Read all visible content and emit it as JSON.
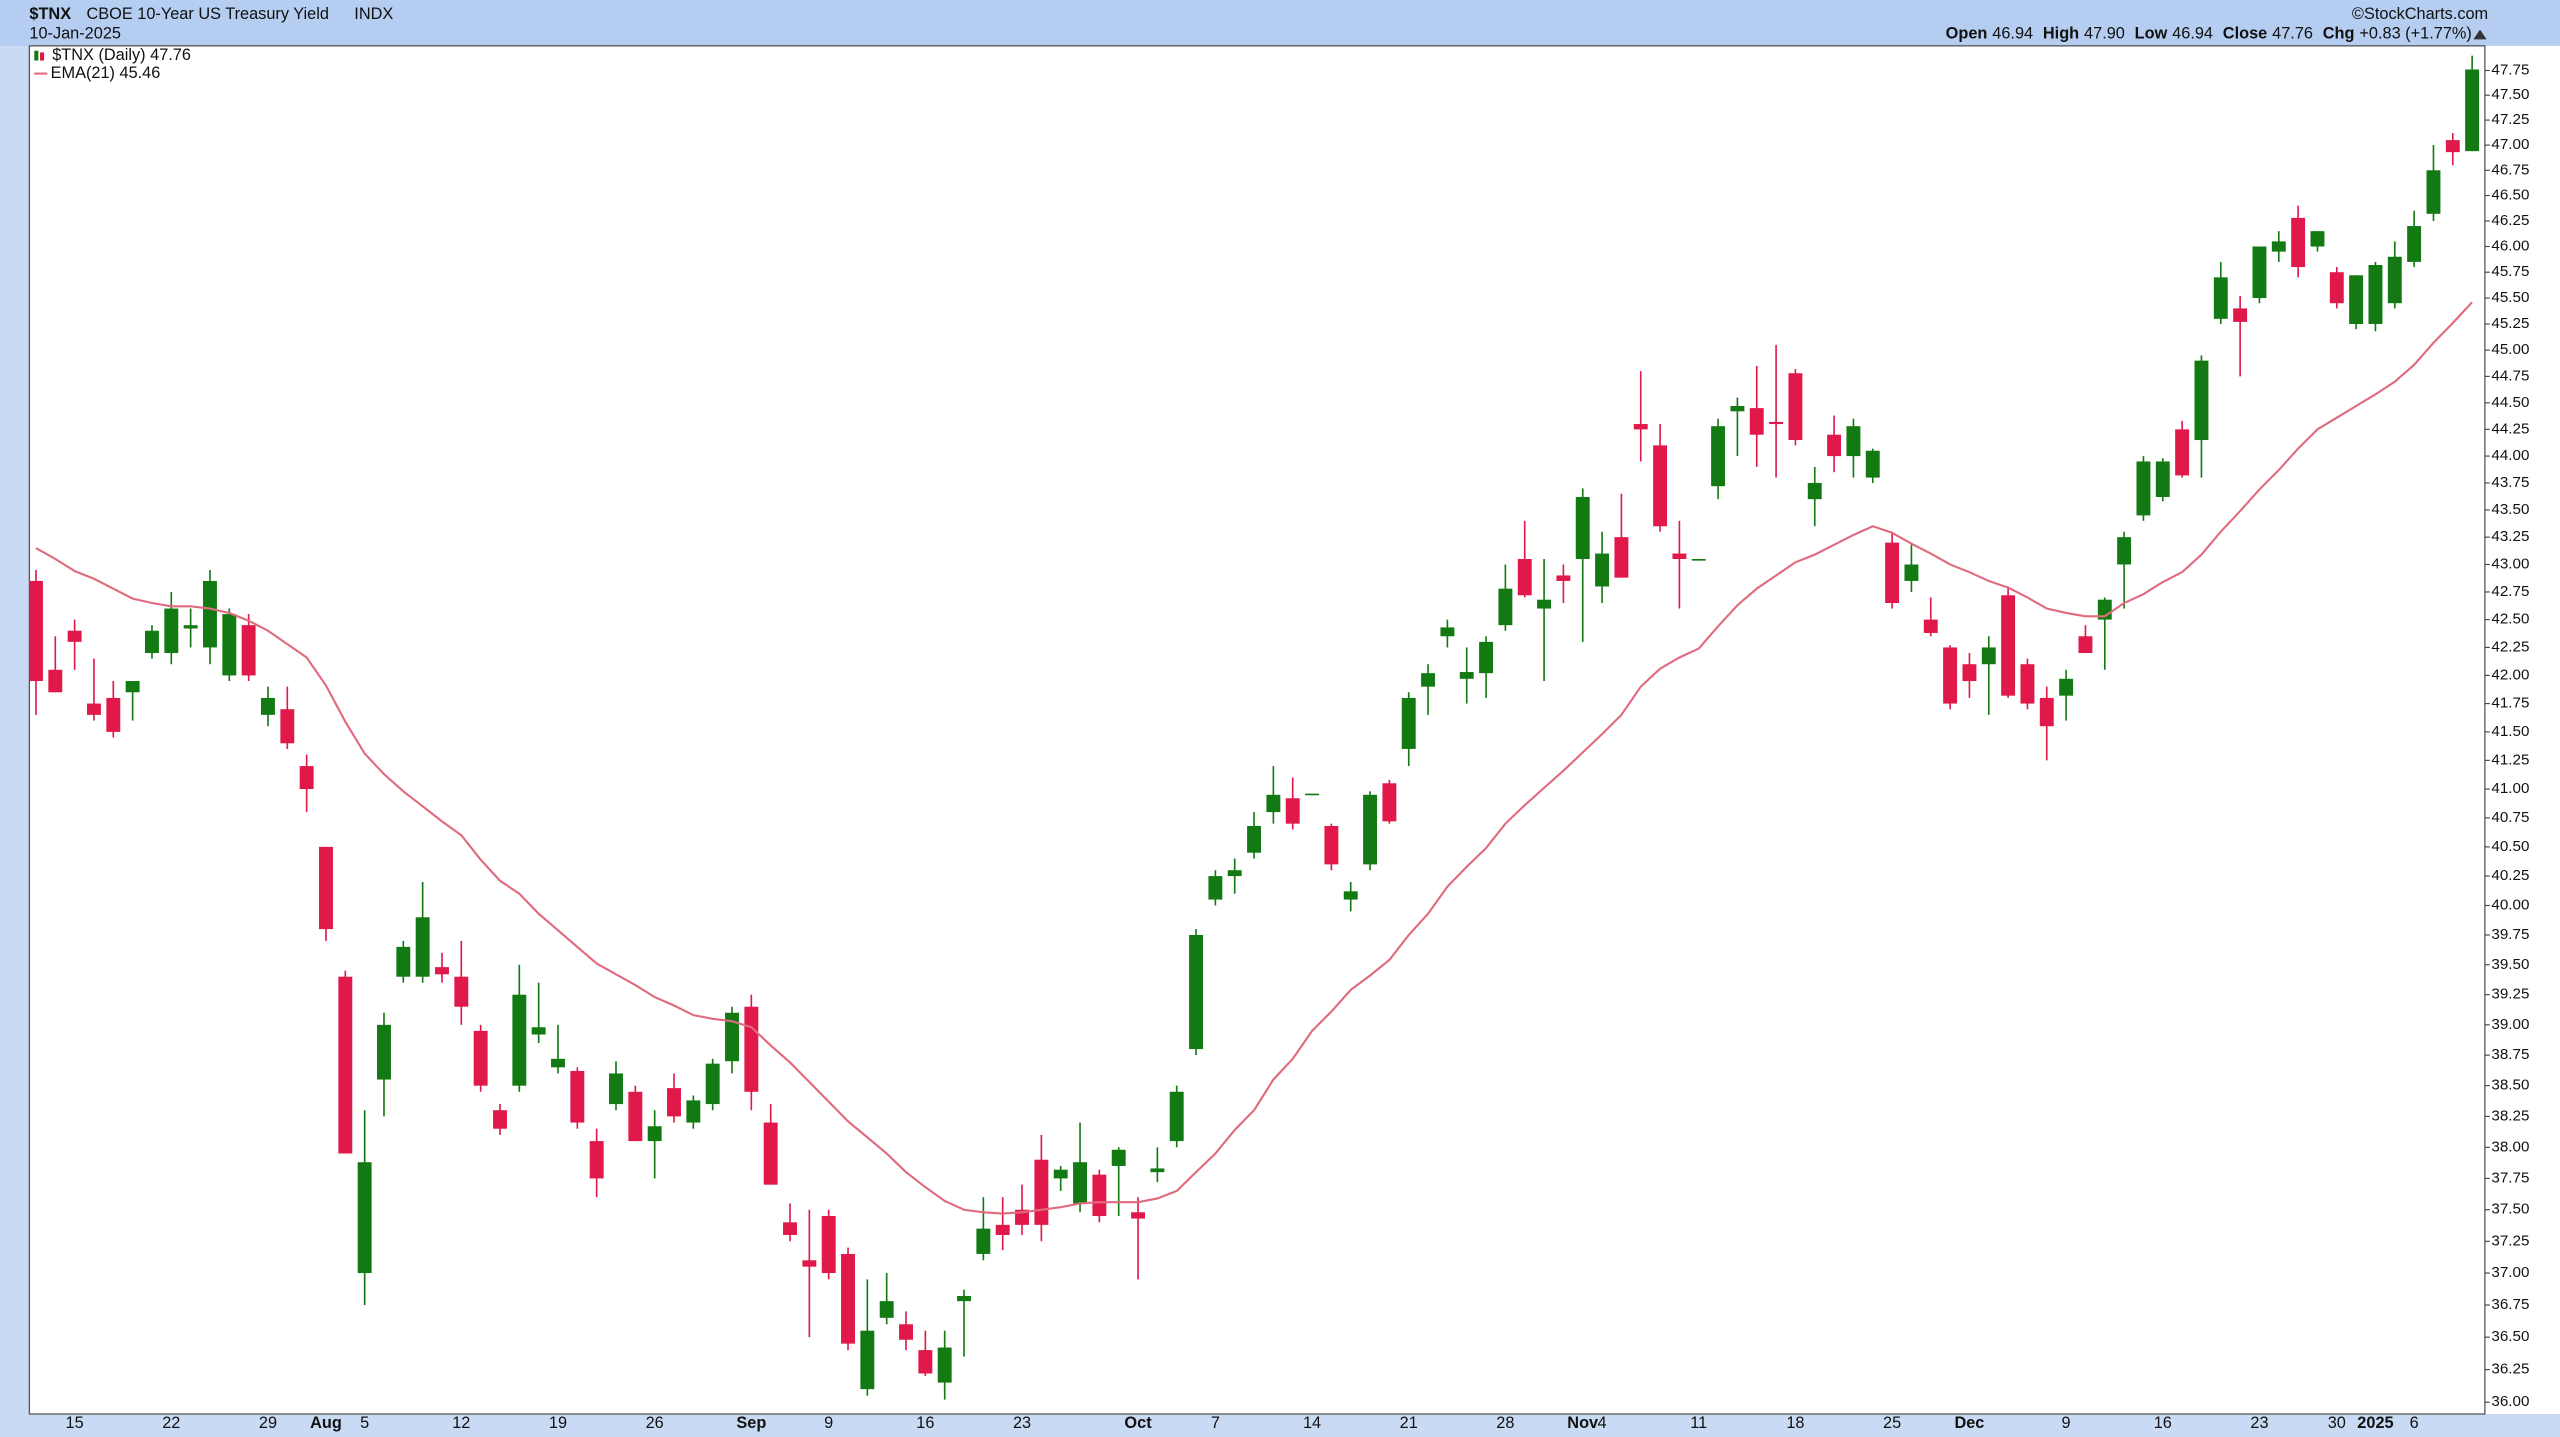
{
  "header": {
    "symbol": "$TNX",
    "description": "CBOE 10-Year US Treasury Yield",
    "exchange": "INDX",
    "date": "10-Jan-2025",
    "watermark": "©StockCharts.com",
    "stats": [
      {
        "label": "Open",
        "value": "46.94"
      },
      {
        "label": "High",
        "value": "47.90"
      },
      {
        "label": "Low",
        "value": "46.94"
      },
      {
        "label": "Close",
        "value": "47.76"
      },
      {
        "label": "Chg",
        "value": "+0.83 (+1.77%)"
      }
    ]
  },
  "chart_data": {
    "type": "candlestick",
    "log": true,
    "ylim": [
      35.91,
      48.0
    ],
    "yticks": [
      {
        "value": 36,
        "label": "36.00"
      },
      36.25,
      {
        "value": 36.5,
        "label": "36.50"
      },
      36.75,
      {
        "value": 37,
        "label": "37.00"
      },
      37.25,
      {
        "value": 37.5,
        "label": "37.50"
      },
      37.75,
      {
        "value": 38,
        "label": "38.00"
      },
      38.25,
      {
        "value": 38.5,
        "label": "38.50"
      },
      38.75,
      {
        "value": 39,
        "label": "39.00"
      },
      39.25,
      {
        "value": 39.5,
        "label": "39.50"
      },
      39.75,
      {
        "value": 40,
        "label": "40.00"
      },
      40.25,
      {
        "value": 40.5,
        "label": "40.50"
      },
      40.75,
      {
        "value": 41,
        "label": "41.00"
      },
      41.25,
      {
        "value": 41.5,
        "label": "41.50"
      },
      41.75,
      {
        "value": 42,
        "label": "42.00"
      },
      42.25,
      {
        "value": 42.5,
        "label": "42.50"
      },
      42.75,
      {
        "value": 43,
        "label": "43.00"
      },
      43.25,
      {
        "value": 43.5,
        "label": "43.50"
      },
      43.75,
      {
        "value": 44,
        "label": "44.00"
      },
      44.25,
      {
        "value": 44.5,
        "label": "44.50"
      },
      44.75,
      {
        "value": 45,
        "label": "45.00"
      },
      45.25,
      {
        "value": 45.5,
        "label": "45.50"
      },
      45.75,
      {
        "value": 46,
        "label": "46.00"
      },
      46.25,
      {
        "value": 46.5,
        "label": "46.50"
      },
      46.75,
      {
        "value": 47,
        "label": "47.00"
      },
      47.25,
      {
        "value": 47.5,
        "label": "47.50"
      },
      47.75
    ],
    "categories": [
      null,
      null,
      "15",
      null,
      null,
      null,
      null,
      "22",
      null,
      null,
      null,
      null,
      "29",
      null,
      null,
      "Aug",
      null,
      "5",
      null,
      null,
      null,
      null,
      "12",
      null,
      null,
      null,
      null,
      "19",
      null,
      null,
      null,
      null,
      "26",
      null,
      null,
      null,
      null,
      "Sep",
      null,
      null,
      null,
      "9",
      null,
      null,
      null,
      null,
      "16",
      null,
      null,
      null,
      null,
      "23",
      null,
      null,
      null,
      null,
      null,
      "Oct",
      null,
      null,
      null,
      "7",
      null,
      null,
      null,
      null,
      "14",
      null,
      null,
      null,
      null,
      "21",
      null,
      null,
      null,
      null,
      "28",
      null,
      null,
      null,
      "Nov",
      "4",
      null,
      null,
      null,
      null,
      "11",
      null,
      null,
      null,
      null,
      "18",
      null,
      null,
      null,
      null,
      "25",
      null,
      null,
      null,
      "Dec",
      null,
      null,
      null,
      null,
      "9",
      null,
      null,
      null,
      null,
      "16",
      null,
      null,
      null,
      null,
      "23",
      null,
      null,
      null,
      "30",
      null,
      "2025",
      null,
      "6",
      null,
      null,
      null
    ],
    "series": [
      {
        "name": "$TNX (Daily) 47.76",
        "type": "candlestick",
        "up_color": "#137a13",
        "down_color": "#e0194a",
        "open": [
          42.85,
          42.05,
          42.4,
          41.75,
          41.8,
          41.85,
          42.2,
          42.2,
          42.42,
          42.25,
          42.0,
          42.45,
          41.65,
          41.7,
          41.2,
          40.5,
          39.4,
          37.0,
          38.55,
          39.4,
          39.4,
          39.48,
          39.4,
          38.95,
          38.3,
          38.5,
          38.92,
          38.65,
          38.62,
          38.05,
          38.35,
          38.45,
          38.05,
          38.48,
          38.2,
          38.35,
          38.7,
          39.15,
          38.2,
          37.4,
          37.1,
          37.45,
          37.15,
          36.1,
          36.65,
          36.6,
          36.4,
          36.15,
          36.78,
          37.15,
          37.38,
          37.5,
          37.9,
          37.75,
          37.55,
          37.78,
          37.85,
          37.48,
          37.8,
          38.05,
          38.8,
          40.05,
          40.25,
          40.45,
          40.8,
          40.92,
          40.96,
          40.68,
          40.05,
          40.35,
          41.05,
          41.35,
          41.9,
          42.35,
          41.97,
          42.02,
          42.45,
          43.05,
          42.6,
          42.9,
          43.05,
          42.8,
          43.25,
          44.3,
          44.1,
          43.1,
          43.05,
          43.72,
          44.42,
          44.45,
          44.32,
          44.78,
          43.6,
          44.2,
          44.0,
          43.8,
          43.2,
          42.85,
          42.5,
          42.25,
          42.1,
          42.1,
          42.72,
          42.1,
          41.8,
          41.82,
          42.35,
          42.5,
          43.0,
          43.45,
          43.62,
          44.25,
          44.15,
          45.3,
          45.4,
          45.5,
          45.95,
          46.28,
          46.0,
          45.75,
          45.25,
          45.25,
          45.45,
          45.85,
          46.32,
          47.05,
          46.94
        ],
        "high": [
          42.95,
          42.35,
          42.5,
          42.15,
          41.95,
          41.95,
          42.45,
          42.75,
          42.6,
          42.95,
          42.6,
          42.55,
          41.9,
          41.9,
          41.3,
          40.5,
          39.45,
          38.3,
          39.1,
          39.7,
          40.2,
          39.6,
          39.7,
          39.0,
          38.35,
          39.5,
          39.35,
          39.0,
          38.65,
          38.15,
          38.7,
          38.5,
          38.3,
          38.6,
          38.42,
          38.72,
          39.15,
          39.25,
          38.35,
          37.55,
          37.5,
          37.5,
          37.2,
          36.95,
          37.0,
          36.7,
          36.55,
          36.55,
          36.87,
          37.6,
          37.6,
          37.7,
          38.1,
          37.85,
          38.2,
          37.82,
          38.0,
          37.6,
          38.0,
          38.5,
          39.8,
          40.3,
          40.4,
          40.8,
          41.2,
          41.1,
          40.96,
          40.7,
          40.2,
          40.98,
          41.08,
          41.85,
          42.1,
          42.5,
          42.25,
          42.35,
          43.0,
          43.4,
          43.05,
          43.0,
          43.7,
          43.3,
          43.65,
          44.8,
          44.3,
          43.4,
          43.05,
          44.35,
          44.55,
          44.85,
          45.05,
          44.82,
          43.9,
          44.38,
          44.35,
          44.07,
          43.3,
          43.2,
          42.7,
          42.27,
          42.2,
          42.35,
          42.8,
          42.15,
          41.9,
          42.05,
          42.45,
          42.7,
          43.3,
          44.0,
          43.98,
          44.33,
          44.95,
          45.85,
          45.52,
          46.0,
          46.15,
          46.4,
          46.15,
          45.8,
          45.72,
          45.85,
          46.05,
          46.35,
          47.0,
          47.12,
          47.9
        ],
        "low": [
          41.65,
          41.85,
          42.05,
          41.6,
          41.45,
          41.6,
          42.15,
          42.1,
          42.25,
          42.1,
          41.95,
          41.95,
          41.55,
          41.35,
          40.8,
          39.7,
          37.95,
          36.75,
          38.25,
          39.35,
          39.35,
          39.35,
          39.0,
          38.45,
          38.1,
          38.45,
          38.85,
          38.6,
          38.15,
          37.6,
          38.3,
          38.05,
          37.75,
          38.2,
          38.15,
          38.3,
          38.6,
          38.3,
          37.7,
          37.25,
          36.5,
          36.95,
          36.4,
          36.05,
          36.6,
          36.4,
          36.2,
          36.02,
          36.35,
          37.1,
          37.18,
          37.3,
          37.25,
          37.65,
          37.48,
          37.4,
          37.45,
          36.95,
          37.72,
          38.0,
          38.75,
          40.0,
          40.1,
          40.4,
          40.7,
          40.65,
          40.96,
          40.3,
          39.95,
          40.3,
          40.7,
          41.2,
          41.65,
          42.25,
          41.75,
          41.8,
          42.4,
          42.7,
          41.95,
          42.65,
          42.3,
          42.65,
          42.88,
          43.95,
          43.3,
          42.6,
          43.05,
          43.6,
          44.0,
          43.9,
          43.8,
          44.1,
          43.35,
          43.85,
          43.8,
          43.75,
          42.6,
          42.75,
          42.35,
          41.7,
          41.8,
          41.65,
          41.8,
          41.7,
          41.25,
          41.6,
          42.2,
          42.05,
          42.6,
          43.4,
          43.58,
          43.8,
          43.8,
          45.25,
          44.75,
          45.45,
          45.85,
          45.7,
          45.95,
          45.4,
          45.2,
          45.18,
          45.4,
          45.8,
          46.25,
          46.8,
          46.94
        ],
        "close": [
          41.95,
          41.85,
          42.3,
          41.65,
          41.5,
          41.95,
          42.4,
          42.6,
          42.45,
          42.85,
          42.55,
          42.0,
          41.8,
          41.4,
          41.0,
          39.8,
          37.95,
          37.88,
          39.0,
          39.65,
          39.9,
          39.42,
          39.15,
          38.5,
          38.15,
          39.25,
          38.98,
          38.72,
          38.2,
          37.75,
          38.6,
          38.05,
          38.17,
          38.25,
          38.38,
          38.68,
          39.1,
          38.45,
          37.7,
          37.3,
          37.05,
          37.0,
          36.45,
          36.55,
          36.78,
          36.48,
          36.22,
          36.42,
          36.82,
          37.35,
          37.3,
          37.38,
          37.38,
          37.82,
          37.88,
          37.45,
          37.98,
          37.43,
          37.83,
          38.45,
          39.75,
          40.25,
          40.3,
          40.68,
          40.95,
          40.7,
          40.96,
          40.35,
          40.12,
          40.95,
          40.72,
          41.8,
          42.02,
          42.43,
          42.03,
          42.3,
          42.78,
          42.72,
          42.68,
          42.85,
          43.62,
          43.1,
          42.88,
          44.25,
          43.35,
          43.05,
          43.05,
          44.28,
          44.47,
          44.2,
          44.3,
          44.15,
          43.75,
          44.0,
          44.28,
          44.05,
          42.65,
          43.0,
          42.38,
          41.75,
          41.95,
          42.25,
          41.82,
          41.75,
          41.55,
          41.97,
          42.2,
          42.68,
          43.25,
          43.95,
          43.95,
          43.82,
          44.9,
          45.7,
          45.27,
          46.0,
          46.05,
          45.8,
          46.15,
          45.45,
          45.72,
          45.82,
          45.9,
          46.2,
          46.75,
          46.93,
          47.76
        ]
      },
      {
        "name": "EMA(21) 45.46",
        "type": "line",
        "color": "#e06a7e",
        "values": [
          43.15,
          43.05,
          42.94,
          42.87,
          42.78,
          42.69,
          42.65,
          42.62,
          42.62,
          42.6,
          42.56,
          42.49,
          42.4,
          42.28,
          42.16,
          41.91,
          41.59,
          41.31,
          41.13,
          40.98,
          40.85,
          40.72,
          40.6,
          40.39,
          40.21,
          40.1,
          39.93,
          39.79,
          39.65,
          39.51,
          39.42,
          39.33,
          39.23,
          39.16,
          39.08,
          39.05,
          39.03,
          38.98,
          38.83,
          38.69,
          38.53,
          38.37,
          38.21,
          38.08,
          37.95,
          37.8,
          37.68,
          37.57,
          37.5,
          37.48,
          37.47,
          37.48,
          37.5,
          37.52,
          37.55,
          37.56,
          37.56,
          37.56,
          37.59,
          37.65,
          37.8,
          37.95,
          38.14,
          38.3,
          38.55,
          38.72,
          38.95,
          39.11,
          39.29,
          39.41,
          39.54,
          39.75,
          39.93,
          40.16,
          40.33,
          40.49,
          40.7,
          40.86,
          41.01,
          41.16,
          41.32,
          41.48,
          41.65,
          41.9,
          42.06,
          42.16,
          42.24,
          42.44,
          42.63,
          42.78,
          42.9,
          43.02,
          43.09,
          43.18,
          43.27,
          43.35,
          43.29,
          43.19,
          43.1,
          43.0,
          42.93,
          42.85,
          42.79,
          42.7,
          42.6,
          42.56,
          42.53,
          42.53,
          42.65,
          42.73,
          42.84,
          42.93,
          43.09,
          43.3,
          43.49,
          43.69,
          43.87,
          44.07,
          44.25,
          44.36,
          44.47,
          44.58,
          44.7,
          44.86,
          45.07,
          45.26,
          45.46
        ]
      }
    ]
  }
}
